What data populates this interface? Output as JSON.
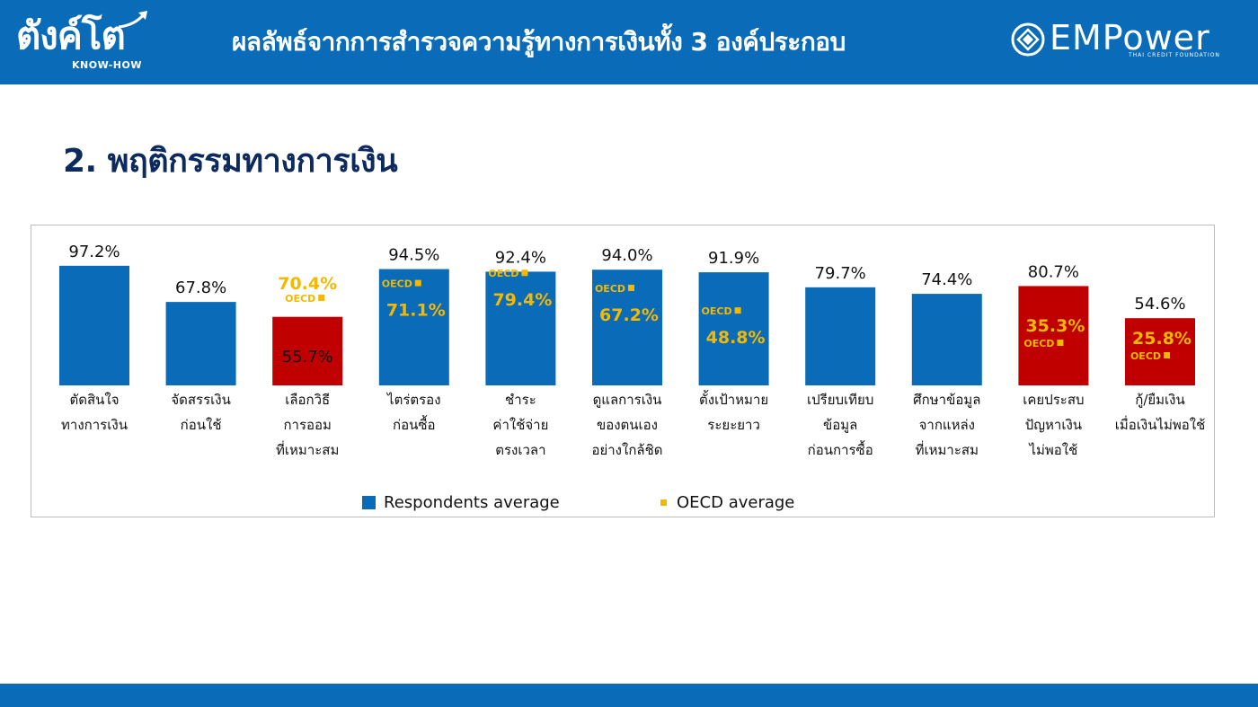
{
  "header": {
    "brand": "ตังค์โต",
    "brand_sub": "KNOW-HOW",
    "title": "ผลลัพธ์จากการสำรวจความรู้ทางการเงินทั้ง 3 องค์ประกอบ",
    "logo_text": "EMPower",
    "logo_sub": "THAI CREDIT FOUNDATION"
  },
  "section_title": "2. พฤติกรรมทางการเงิน",
  "colors": {
    "header": "#0a6cb8",
    "bar_blue": "#0a6cb8",
    "bar_red": "#c00000",
    "oecd": "#f5b800",
    "title": "#0d2a5e"
  },
  "chart_data": {
    "type": "bar",
    "oecd_tag": "OECD",
    "categories": [
      [
        "ตัดสินใจ",
        "ทางการเงิน"
      ],
      [
        "จัดสรรเงิน",
        "ก่อนใช้"
      ],
      [
        "เลือกวิธี",
        "การออม",
        "ที่เหมาะสม"
      ],
      [
        "ไตร่ตรอง",
        "ก่อนซื้อ"
      ],
      [
        "ชำระ",
        "ค่าใช้จ่าย",
        "ตรงเวลา"
      ],
      [
        "ดูแลการเงิน",
        "ของตนเอง",
        "อย่างใกล้ชิด"
      ],
      [
        "ตั้งเป้าหมาย",
        "ระยะยาว"
      ],
      [
        "เปรียบเทียบ",
        "ข้อมูล",
        "ก่อนการซื้อ"
      ],
      [
        "ศึกษาข้อมูล",
        "จากแหล่ง",
        "ที่เหมาะสม"
      ],
      [
        "เคยประสบ",
        "ปัญหาเงิน",
        "ไม่พอใช้"
      ],
      [
        "กู้/ยืมเงิน",
        "เมื่อเงินไม่พอใช้"
      ]
    ],
    "series": [
      {
        "name": "Respondents average",
        "values": [
          97.2,
          67.8,
          55.7,
          94.5,
          92.4,
          94.0,
          91.9,
          79.7,
          74.4,
          80.7,
          54.6
        ],
        "labels": [
          "97.2%",
          "67.8%",
          "55.7%",
          "94.5%",
          "92.4%",
          "94.0%",
          "91.9%",
          "79.7%",
          "74.4%",
          "80.7%",
          "54.6%"
        ],
        "highlight": [
          false,
          false,
          true,
          false,
          false,
          false,
          false,
          false,
          false,
          true,
          true
        ]
      },
      {
        "name": "OECD average",
        "values": [
          null,
          null,
          70.4,
          71.1,
          79.4,
          67.2,
          48.8,
          null,
          null,
          35.3,
          25.8
        ],
        "labels": [
          "",
          "",
          "70.4%",
          "71.1%",
          "79.4%",
          "67.2%",
          "48.8%",
          "",
          "",
          "35.3%",
          "25.8%"
        ]
      }
    ],
    "ylim": [
      0,
      100
    ],
    "legend": "bottom-center",
    "grid": false
  }
}
